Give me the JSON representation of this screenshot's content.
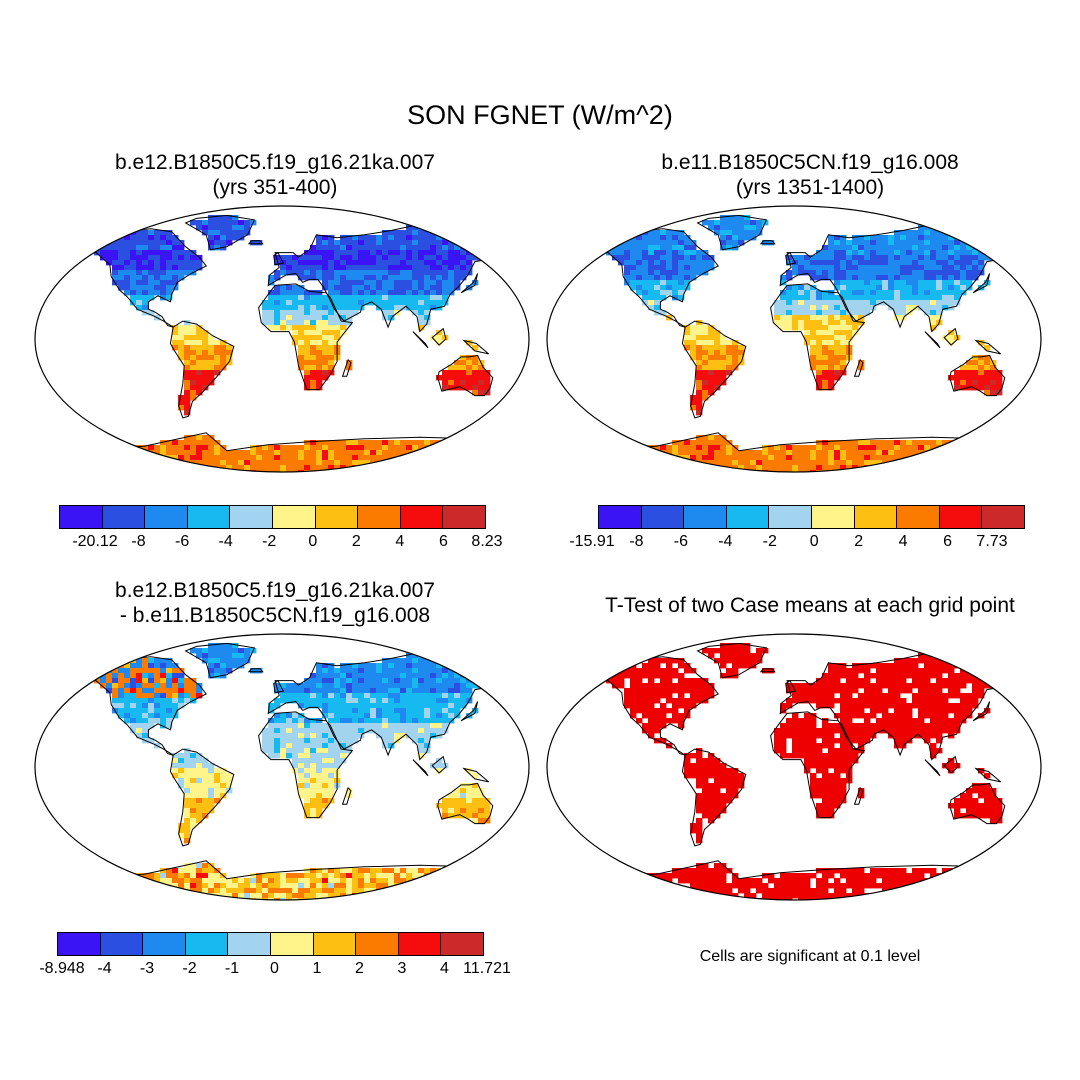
{
  "title": "SON FGNET (W/m^2)",
  "panels": {
    "p1": {
      "title_line1": "b.e12.B1850C5.f19_g16.21ka.007",
      "title_line2": "(yrs 351-400)"
    },
    "p2": {
      "title_line1": "b.e11.B1850C5CN.f19_g16.008",
      "title_line2": "(yrs 1351-1400)"
    },
    "p3": {
      "title_line1": "b.e12.B1850C5.f19_g16.21ka.007",
      "title_line2": "- b.e11.B1850C5CN.f19_g16.008"
    },
    "p4": {
      "title_line1": "T-Test of two Case means at each grid point"
    }
  },
  "colorbars": {
    "cb1": {
      "ticks": [
        "-20.12",
        "-8",
        "-6",
        "-4",
        "-2",
        "0",
        "2",
        "4",
        "6",
        "8.23"
      ]
    },
    "cb2": {
      "ticks": [
        "-15.91",
        "-8",
        "-6",
        "-4",
        "-2",
        "0",
        "2",
        "4",
        "6",
        "7.73"
      ]
    },
    "cb3": {
      "ticks": [
        "-8.948",
        "-4",
        "-3",
        "-2",
        "-1",
        "0",
        "1",
        "2",
        "3",
        "4",
        "11.721"
      ]
    }
  },
  "colors": [
    "#3b14f5",
    "#2b4fe0",
    "#1e8af0",
    "#16baf0",
    "#a2d4ef",
    "#fff48a",
    "#fdbf12",
    "#fb7b00",
    "#f50c0c",
    "#cc2a2a"
  ],
  "significance_color": "#ee0000",
  "note": "Cells are significant at 0.1 level"
}
